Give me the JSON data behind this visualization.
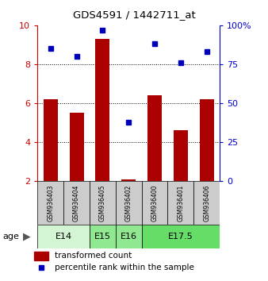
{
  "title": "GDS4591 / 1442711_at",
  "samples": [
    "GSM936403",
    "GSM936404",
    "GSM936405",
    "GSM936402",
    "GSM936400",
    "GSM936401",
    "GSM936406"
  ],
  "transformed_count": [
    6.2,
    5.5,
    9.3,
    2.1,
    6.4,
    4.6,
    6.2
  ],
  "percentile_rank": [
    85,
    80,
    97,
    38,
    88,
    76,
    83
  ],
  "age_groups": [
    {
      "label": "E14",
      "start": 0,
      "end": 2,
      "color": "#d4f5d4"
    },
    {
      "label": "E15",
      "start": 2,
      "end": 3,
      "color": "#90e890"
    },
    {
      "label": "E16",
      "start": 3,
      "end": 4,
      "color": "#90e890"
    },
    {
      "label": "E17.5",
      "start": 4,
      "end": 7,
      "color": "#66dd66"
    }
  ],
  "ylim_left": [
    2,
    10
  ],
  "ylim_right": [
    0,
    100
  ],
  "yticks_left": [
    2,
    4,
    6,
    8,
    10
  ],
  "yticks_right": [
    0,
    25,
    50,
    75,
    100
  ],
  "bar_color": "#aa0000",
  "dot_color": "#0000bb",
  "bar_bottom": 2,
  "grid_lines": [
    4,
    6,
    8
  ],
  "left_tick_color": "#cc0000",
  "right_tick_color": "#0000cc",
  "sample_box_color": "#cccccc"
}
